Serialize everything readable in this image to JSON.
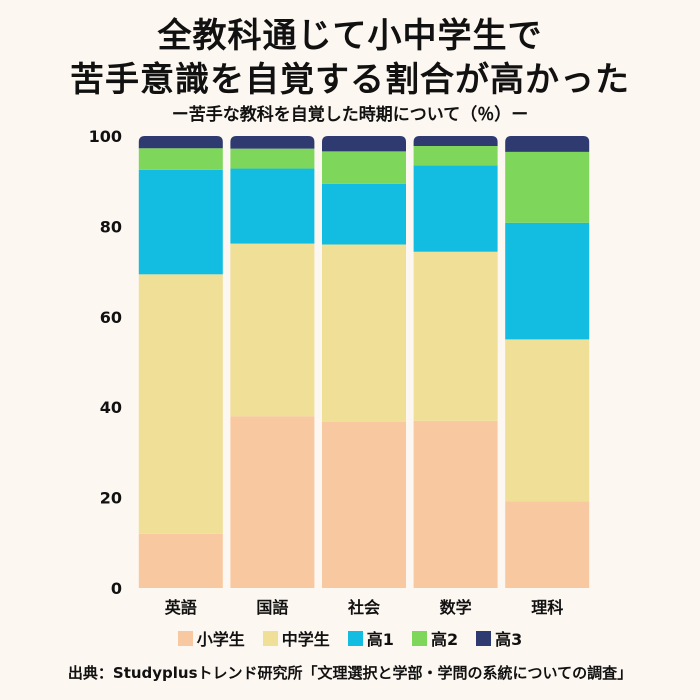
{
  "title_line1": "全教科通じて小中学生で",
  "title_line2": "苦手意識を自覚する割合が高かった",
  "subtitle": "ー苦手な教科を自覚した時期について（％）ー",
  "source": "出典：Studyplusトレンド研究所「文理選択と学部・学問の系統についての調査」",
  "chart_data": {
    "type": "bar",
    "stacked": true,
    "categories": [
      "英語",
      "国語",
      "社会",
      "数学",
      "理科"
    ],
    "series": [
      {
        "name": "小学生",
        "color": "#f8c9a0",
        "values": [
          12,
          38,
          36.8,
          37,
          19.2
        ]
      },
      {
        "name": "中学生",
        "color": "#efdf97",
        "values": [
          57.4,
          38.2,
          39.2,
          37.4,
          35.8
        ]
      },
      {
        "name": "高1",
        "color": "#12bde1",
        "values": [
          23.1,
          16.6,
          13.4,
          19.1,
          25.8
        ]
      },
      {
        "name": "高2",
        "color": "#7ed75b",
        "values": [
          4.8,
          4.4,
          7.2,
          4.3,
          15.7
        ]
      },
      {
        "name": "高3",
        "color": "#2e3a70",
        "values": [
          2.7,
          2.8,
          3.4,
          2.2,
          3.5
        ]
      }
    ],
    "yticks": [
      0,
      20,
      40,
      60,
      80,
      100
    ],
    "ylim": [
      0,
      100
    ],
    "grid": false,
    "legend_position": "bottom"
  }
}
